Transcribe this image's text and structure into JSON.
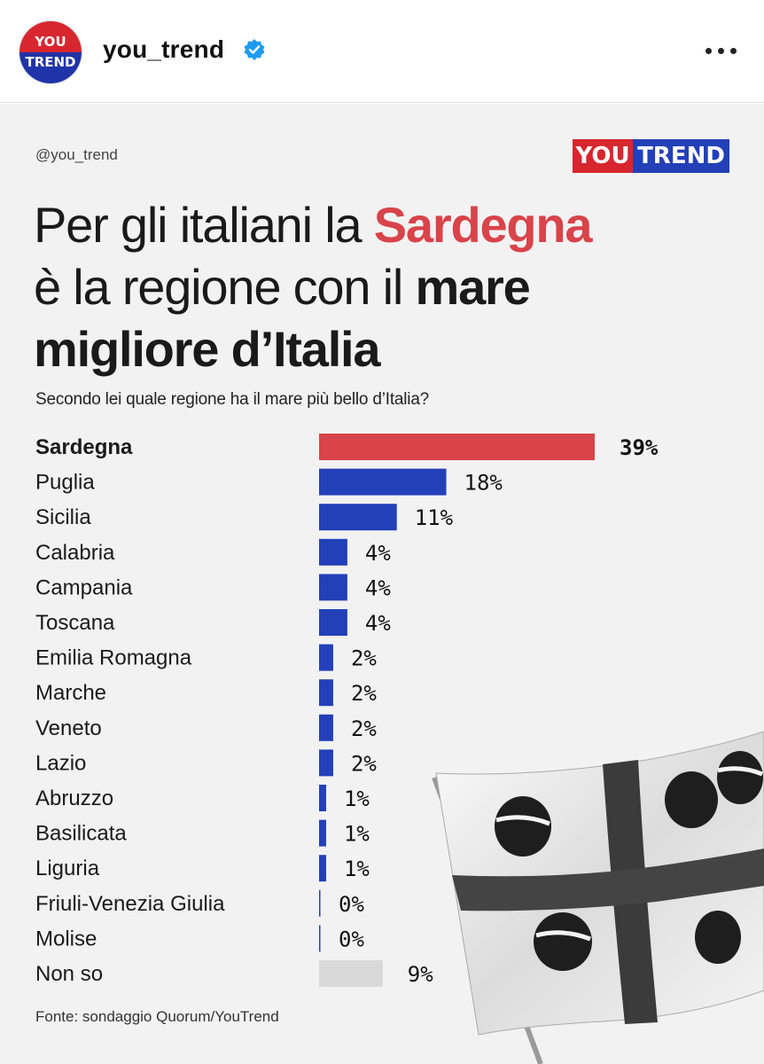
{
  "account": {
    "username": "you_trend",
    "avatar_line1": "YOU",
    "avatar_line2": "TREND",
    "verified_icon": "verified-badge-icon",
    "more_icon": "more-options-icon"
  },
  "post": {
    "handle": "@you_trend",
    "brand_you": "YOU",
    "brand_trend": "TREND",
    "headline": {
      "line1_pre": "Per gli italiani la ",
      "line1_highlight": "Sardegna",
      "line2_pre": "è la regione con il ",
      "line2_bold": "mare",
      "line3_bold": "migliore d’Italia"
    },
    "subtitle": "Secondo lei quale regione ha il mare più bello d’Italia?",
    "source": "Fonte: sondaggio Quorum/YouTrend",
    "colors": {
      "highlight": "#d9434a",
      "bar": "#2340b8",
      "bar_unknown": "#d9d9d9",
      "brand_red": "#d7262e",
      "brand_blue": "#2340b8"
    }
  },
  "chart_data": {
    "type": "bar",
    "orientation": "horizontal",
    "title": "Per gli italiani la Sardegna è la regione con il mare migliore d’Italia",
    "subtitle": "Secondo lei quale regione ha il mare più bello d’Italia?",
    "categories": [
      "Sardegna",
      "Puglia",
      "Sicilia",
      "Calabria",
      "Campania",
      "Toscana",
      "Emilia Romagna",
      "Marche",
      "Veneto",
      "Lazio",
      "Abruzzo",
      "Basilicata",
      "Liguria",
      "Friuli-Venezia Giulia",
      "Molise",
      "Non so"
    ],
    "values": [
      39,
      18,
      11,
      4,
      4,
      4,
      2,
      2,
      2,
      2,
      1,
      1,
      1,
      0,
      0,
      9
    ],
    "labels": [
      "39%",
      "18%",
      "11%",
      "4%",
      "4%",
      "4%",
      "2%",
      "2%",
      "2%",
      "2%",
      "1%",
      "1%",
      "1%",
      "0%",
      "0%",
      "9%"
    ],
    "unit": "%",
    "xlim": [
      0,
      39
    ],
    "grid": false,
    "legend": "none"
  }
}
